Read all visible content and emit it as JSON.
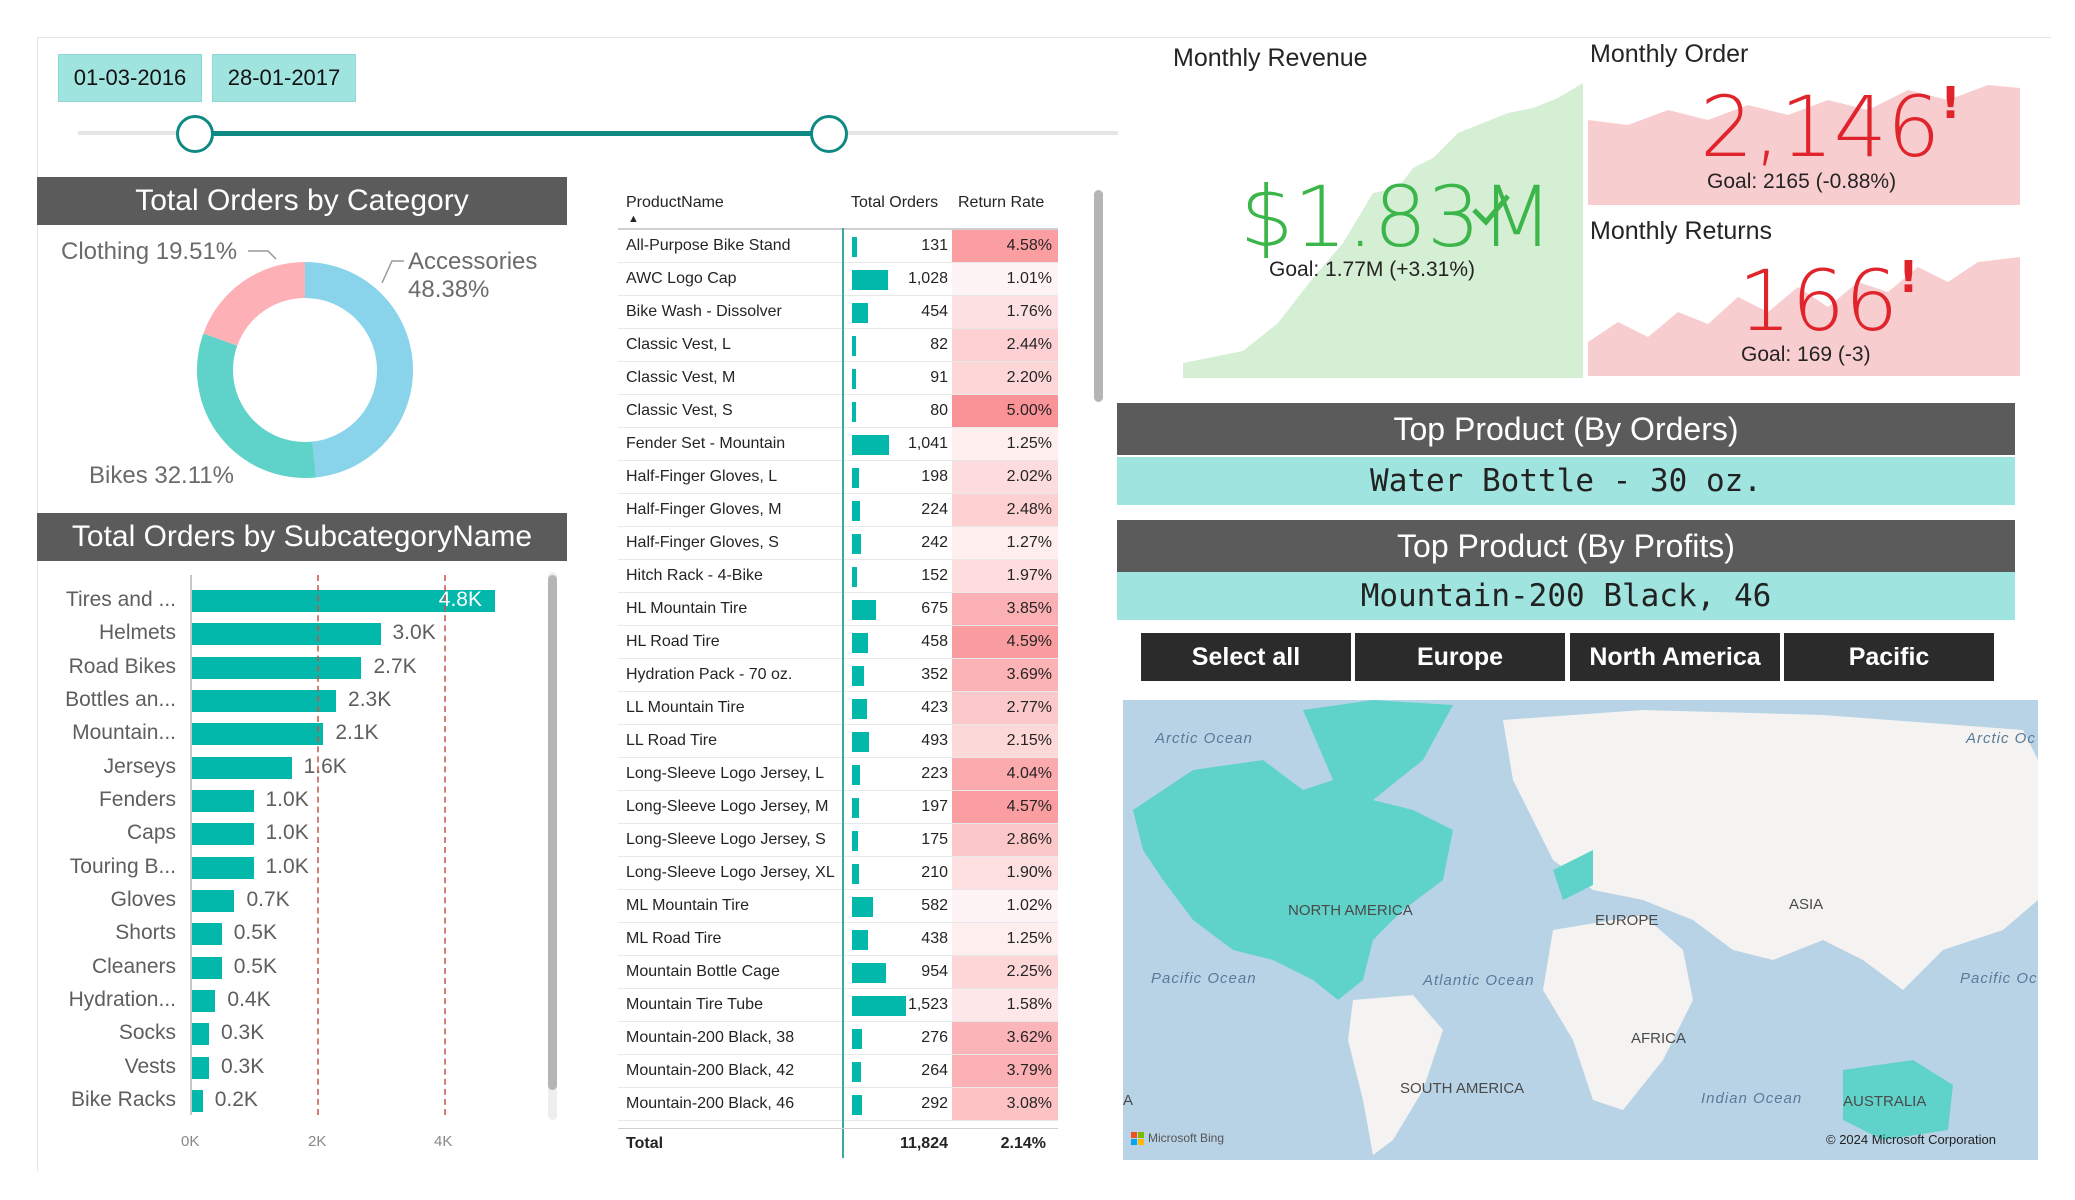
{
  "date_slicer": {
    "start": "01-03-2016",
    "end": "28-01-2017"
  },
  "category_chart": {
    "title": "Total Orders by Category",
    "slices": [
      {
        "label": "Accessories",
        "percent_text": "48.38%",
        "value": 48.38,
        "color": "#8ad4eb"
      },
      {
        "label": "Bikes",
        "percent_text": "32.11%",
        "value": 32.11,
        "color": "#5fd3c9"
      },
      {
        "label": "Clothing",
        "percent_text": "19.51%",
        "value": 19.51,
        "color": "#fdb1b6"
      }
    ]
  },
  "subcategory_chart": {
    "title": "Total Orders by SubcategoryName",
    "axis_ticks": [
      "0K",
      "2K",
      "4K"
    ]
  },
  "chart_data": [
    {
      "type": "pie",
      "title": "Total Orders by Category",
      "categories": [
        "Accessories",
        "Bikes",
        "Clothing"
      ],
      "values": [
        48.38,
        32.11,
        19.51
      ]
    },
    {
      "type": "bar",
      "title": "Total Orders by SubcategoryName",
      "categories": [
        "Tires and ...",
        "Helmets",
        "Road Bikes",
        "Bottles an...",
        "Mountain...",
        "Jerseys",
        "Fenders",
        "Caps",
        "Touring B...",
        "Gloves",
        "Shorts",
        "Cleaners",
        "Hydration...",
        "Socks",
        "Vests",
        "Bike Racks"
      ],
      "values": [
        4.8,
        3.0,
        2.7,
        2.3,
        2.1,
        1.6,
        1.0,
        1.0,
        1.0,
        0.7,
        0.5,
        0.5,
        0.4,
        0.3,
        0.3,
        0.2
      ],
      "value_labels": [
        "4.8K",
        "3.0K",
        "2.7K",
        "2.3K",
        "2.1K",
        "1.6K",
        "1.0K",
        "1.0K",
        "1.0K",
        "0.7K",
        "0.5K",
        "0.5K",
        "0.4K",
        "0.3K",
        "0.3K",
        "0.2K"
      ],
      "xlim": [
        0,
        5
      ],
      "grid": true
    }
  ],
  "table": {
    "headers": [
      "ProductName",
      "Total Orders",
      "Return Rate"
    ],
    "rows": [
      {
        "name": "All-Purpose Bike Stand",
        "orders": "131",
        "orders_num": 131,
        "rate": "4.58%",
        "rate_num": 4.58
      },
      {
        "name": "AWC Logo Cap",
        "orders": "1,028",
        "orders_num": 1028,
        "rate": "1.01%",
        "rate_num": 1.01
      },
      {
        "name": "Bike Wash - Dissolver",
        "orders": "454",
        "orders_num": 454,
        "rate": "1.76%",
        "rate_num": 1.76
      },
      {
        "name": "Classic Vest, L",
        "orders": "82",
        "orders_num": 82,
        "rate": "2.44%",
        "rate_num": 2.44
      },
      {
        "name": "Classic Vest, M",
        "orders": "91",
        "orders_num": 91,
        "rate": "2.20%",
        "rate_num": 2.2
      },
      {
        "name": "Classic Vest, S",
        "orders": "80",
        "orders_num": 80,
        "rate": "5.00%",
        "rate_num": 5.0
      },
      {
        "name": "Fender Set - Mountain",
        "orders": "1,041",
        "orders_num": 1041,
        "rate": "1.25%",
        "rate_num": 1.25
      },
      {
        "name": "Half-Finger Gloves, L",
        "orders": "198",
        "orders_num": 198,
        "rate": "2.02%",
        "rate_num": 2.02
      },
      {
        "name": "Half-Finger Gloves, M",
        "orders": "224",
        "orders_num": 224,
        "rate": "2.48%",
        "rate_num": 2.48
      },
      {
        "name": "Half-Finger Gloves, S",
        "orders": "242",
        "orders_num": 242,
        "rate": "1.27%",
        "rate_num": 1.27
      },
      {
        "name": "Hitch Rack - 4-Bike",
        "orders": "152",
        "orders_num": 152,
        "rate": "1.97%",
        "rate_num": 1.97
      },
      {
        "name": "HL Mountain Tire",
        "orders": "675",
        "orders_num": 675,
        "rate": "3.85%",
        "rate_num": 3.85
      },
      {
        "name": "HL Road Tire",
        "orders": "458",
        "orders_num": 458,
        "rate": "4.59%",
        "rate_num": 4.59
      },
      {
        "name": "Hydration Pack - 70 oz.",
        "orders": "352",
        "orders_num": 352,
        "rate": "3.69%",
        "rate_num": 3.69
      },
      {
        "name": "LL Mountain Tire",
        "orders": "423",
        "orders_num": 423,
        "rate": "2.77%",
        "rate_num": 2.77
      },
      {
        "name": "LL Road Tire",
        "orders": "493",
        "orders_num": 493,
        "rate": "2.15%",
        "rate_num": 2.15
      },
      {
        "name": "Long-Sleeve Logo Jersey, L",
        "orders": "223",
        "orders_num": 223,
        "rate": "4.04%",
        "rate_num": 4.04
      },
      {
        "name": "Long-Sleeve Logo Jersey, M",
        "orders": "197",
        "orders_num": 197,
        "rate": "4.57%",
        "rate_num": 4.57
      },
      {
        "name": "Long-Sleeve Logo Jersey, S",
        "orders": "175",
        "orders_num": 175,
        "rate": "2.86%",
        "rate_num": 2.86
      },
      {
        "name": "Long-Sleeve Logo Jersey, XL",
        "orders": "210",
        "orders_num": 210,
        "rate": "1.90%",
        "rate_num": 1.9
      },
      {
        "name": "ML Mountain Tire",
        "orders": "582",
        "orders_num": 582,
        "rate": "1.02%",
        "rate_num": 1.02
      },
      {
        "name": "ML Road Tire",
        "orders": "438",
        "orders_num": 438,
        "rate": "1.25%",
        "rate_num": 1.25
      },
      {
        "name": "Mountain Bottle Cage",
        "orders": "954",
        "orders_num": 954,
        "rate": "2.25%",
        "rate_num": 2.25
      },
      {
        "name": "Mountain Tire Tube",
        "orders": "1,523",
        "orders_num": 1523,
        "rate": "1.58%",
        "rate_num": 1.58
      },
      {
        "name": "Mountain-200 Black, 38",
        "orders": "276",
        "orders_num": 276,
        "rate": "3.62%",
        "rate_num": 3.62
      },
      {
        "name": "Mountain-200 Black, 42",
        "orders": "264",
        "orders_num": 264,
        "rate": "3.79%",
        "rate_num": 3.79
      },
      {
        "name": "Mountain-200 Black, 46",
        "orders": "292",
        "orders_num": 292,
        "rate": "3.08%",
        "rate_num": 3.08
      }
    ],
    "total": {
      "label": "Total",
      "orders": "11,824",
      "rate": "2.14%"
    }
  },
  "kpis": {
    "revenue": {
      "title": "Monthly Revenue",
      "value": "$1.83M",
      "goal": "Goal: 1.77M (+3.31%)",
      "status": "check-icon",
      "color": "#3cb54a"
    },
    "orders": {
      "title": "Monthly Order",
      "value": "2,146",
      "goal": "Goal: 2165 (-0.88%)",
      "status": "!",
      "color": "#e0242b"
    },
    "returns": {
      "title": "Monthly Returns",
      "value": "166",
      "goal": "Goal: 169 (-3)",
      "status": "!",
      "color": "#e0242b"
    }
  },
  "top_products": {
    "by_orders_title": "Top Product (By Orders)",
    "by_orders_value": "Water Bottle - 30 oz.",
    "by_profits_title": "Top Product (By Profits)",
    "by_profits_value": "Mountain-200 Black, 46"
  },
  "region_slicer": [
    "Select all",
    "Europe",
    "North America",
    "Pacific"
  ],
  "map": {
    "labels": {
      "na": "NORTH AMERICA",
      "europe": "EUROPE",
      "asia": "ASIA",
      "africa": "AFRICA",
      "sa": "SOUTH AMERICA",
      "australia": "AUSTRALIA"
    },
    "oceans": {
      "arctic1": "Arctic Ocean",
      "arctic2": "Arctic Oc",
      "pacific1": "Pacific Ocean",
      "pacific2": "Pacific Oc",
      "atlantic": "Atlantic Ocean",
      "indian": "Indian Ocean"
    },
    "edge_a": "A",
    "bing": "Microsoft Bing",
    "copyright": "© 2024 Microsoft Corporation"
  }
}
